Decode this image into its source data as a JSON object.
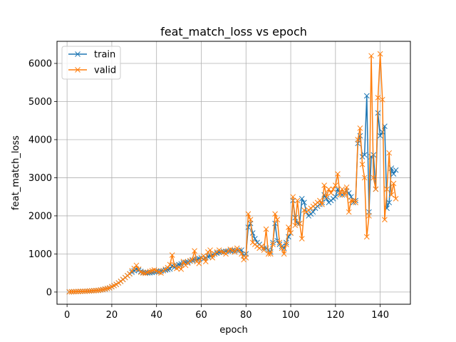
{
  "chart_data": {
    "type": "line",
    "title": "feat_match_loss vs epoch",
    "xlabel": "epoch",
    "ylabel": "feat_match_loss",
    "xlim": [
      -4.5,
      153.5
    ],
    "ylim": [
      -320,
      6580
    ],
    "xticks": [
      0,
      20,
      40,
      60,
      80,
      100,
      120,
      140
    ],
    "yticks": [
      0,
      1000,
      2000,
      3000,
      4000,
      5000,
      6000
    ],
    "grid": true,
    "legend_position": "upper-left",
    "marker": "x",
    "series": [
      {
        "name": "train",
        "color": "#1f77b4",
        "x": [
          1,
          2,
          3,
          4,
          5,
          6,
          7,
          8,
          9,
          10,
          11,
          12,
          13,
          14,
          15,
          16,
          17,
          18,
          19,
          20,
          21,
          22,
          23,
          24,
          25,
          26,
          27,
          28,
          29,
          30,
          31,
          32,
          33,
          34,
          35,
          36,
          37,
          38,
          39,
          40,
          41,
          42,
          43,
          44,
          45,
          46,
          47,
          48,
          49,
          50,
          51,
          52,
          53,
          54,
          55,
          56,
          57,
          58,
          59,
          60,
          61,
          62,
          63,
          64,
          65,
          66,
          67,
          68,
          69,
          70,
          71,
          72,
          73,
          74,
          75,
          76,
          77,
          78,
          79,
          80,
          81,
          82,
          83,
          84,
          85,
          86,
          87,
          88,
          89,
          90,
          91,
          92,
          93,
          94,
          95,
          96,
          97,
          98,
          99,
          100,
          101,
          102,
          103,
          104,
          105,
          106,
          107,
          108,
          109,
          110,
          111,
          112,
          113,
          114,
          115,
          116,
          117,
          118,
          119,
          120,
          121,
          122,
          123,
          124,
          125,
          126,
          127,
          128,
          129,
          130,
          131,
          132,
          133,
          134,
          135,
          136,
          137,
          138,
          139,
          140,
          141,
          142,
          143,
          144,
          145,
          146,
          147
        ],
        "y": [
          5,
          8,
          10,
          12,
          15,
          18,
          20,
          22,
          25,
          28,
          32,
          35,
          40,
          45,
          55,
          65,
          80,
          95,
          110,
          140,
          170,
          200,
          240,
          280,
          330,
          380,
          430,
          480,
          520,
          560,
          600,
          570,
          540,
          520,
          510,
          500,
          505,
          515,
          525,
          535,
          540,
          550,
          560,
          575,
          590,
          605,
          690,
          650,
          700,
          720,
          740,
          760,
          780,
          790,
          810,
          830,
          850,
          860,
          880,
          900,
          860,
          900,
          930,
          950,
          975,
          1000,
          1020,
          1040,
          1050,
          1060,
          1070,
          1075,
          1080,
          1085,
          1090,
          1095,
          1100,
          1100,
          950,
          1000,
          1700,
          1800,
          1550,
          1400,
          1300,
          1250,
          1200,
          1150,
          1150,
          1100,
          1050,
          1300,
          1800,
          1350,
          1250,
          1200,
          1150,
          1300,
          1450,
          1550,
          2400,
          1950,
          1800,
          1800,
          2450,
          2350,
          2100,
          2000,
          2050,
          2100,
          2200,
          2250,
          2300,
          2350,
          2550,
          2450,
          2350,
          2400,
          2450,
          2500,
          2700,
          2600,
          2550,
          2600,
          2650,
          2600,
          2500,
          2350,
          2400,
          3900,
          4100,
          3550,
          3600,
          5150,
          2100,
          3550,
          3600,
          2700,
          4700,
          4100,
          4200,
          4350,
          2200,
          2350,
          3250,
          3100,
          3200
        ]
      },
      {
        "name": "valid",
        "color": "#ff7f0e",
        "x": [
          1,
          2,
          3,
          4,
          5,
          6,
          7,
          8,
          9,
          10,
          11,
          12,
          13,
          14,
          15,
          16,
          17,
          18,
          19,
          20,
          21,
          22,
          23,
          24,
          25,
          26,
          27,
          28,
          29,
          30,
          31,
          32,
          33,
          34,
          35,
          36,
          37,
          38,
          39,
          40,
          41,
          42,
          43,
          44,
          45,
          46,
          47,
          48,
          49,
          50,
          51,
          52,
          53,
          54,
          55,
          56,
          57,
          58,
          59,
          60,
          61,
          62,
          63,
          64,
          65,
          66,
          67,
          68,
          69,
          70,
          71,
          72,
          73,
          74,
          75,
          76,
          77,
          78,
          79,
          80,
          81,
          82,
          83,
          84,
          85,
          86,
          87,
          88,
          89,
          90,
          91,
          92,
          93,
          94,
          95,
          96,
          97,
          98,
          99,
          100,
          101,
          102,
          103,
          104,
          105,
          106,
          107,
          108,
          109,
          110,
          111,
          112,
          113,
          114,
          115,
          116,
          117,
          118,
          119,
          120,
          121,
          122,
          123,
          124,
          125,
          126,
          127,
          128,
          129,
          130,
          131,
          132,
          133,
          134,
          135,
          136,
          137,
          138,
          139,
          140,
          141,
          142,
          143,
          144,
          145,
          146,
          147
        ],
        "y": [
          5,
          8,
          10,
          12,
          15,
          18,
          20,
          22,
          25,
          28,
          32,
          35,
          40,
          45,
          55,
          65,
          80,
          95,
          110,
          140,
          170,
          200,
          240,
          280,
          330,
          380,
          430,
          480,
          560,
          620,
          700,
          600,
          520,
          500,
          490,
          520,
          540,
          560,
          580,
          560,
          520,
          500,
          560,
          600,
          640,
          720,
          970,
          700,
          620,
          650,
          600,
          800,
          700,
          760,
          820,
          850,
          1080,
          800,
          750,
          900,
          950,
          800,
          1050,
          1100,
          900,
          1000,
          1050,
          1100,
          1060,
          1040,
          1000,
          1080,
          1120,
          1100,
          1050,
          1150,
          1100,
          1000,
          850,
          900,
          2050,
          1900,
          1300,
          1250,
          1200,
          1150,
          1200,
          1100,
          1650,
          1000,
          1000,
          1250,
          2050,
          1900,
          1300,
          1150,
          1000,
          1250,
          1700,
          1550,
          2500,
          1750,
          2400,
          1800,
          1400,
          2150,
          2100,
          2150,
          2200,
          2250,
          2300,
          2350,
          2400,
          2300,
          2800,
          2500,
          2700,
          2600,
          2700,
          2800,
          3100,
          2550,
          2700,
          2550,
          2750,
          2100,
          2400,
          2400,
          2350,
          4000,
          4300,
          3350,
          3000,
          1450,
          2000,
          6200,
          3000,
          2700,
          5100,
          6250,
          5050,
          1900,
          2700,
          3650,
          2550,
          2850,
          2450
        ]
      }
    ]
  }
}
